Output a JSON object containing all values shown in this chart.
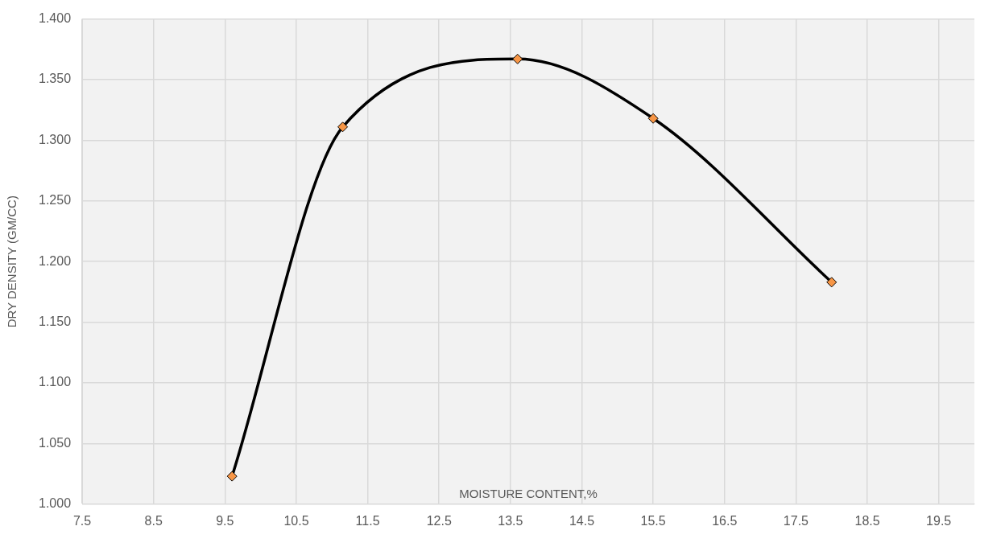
{
  "chart_data": {
    "type": "line",
    "xlabel": "MOISTURE CONTENT,%",
    "ylabel": "DRY DENSITY (GM/CC)",
    "x": [
      9.6,
      11.15,
      13.6,
      15.5,
      18.0
    ],
    "series": [
      {
        "color": "#000000",
        "values": [
          1.023,
          1.311,
          1.367,
          1.318,
          1.183
        ]
      }
    ],
    "marker": "diamond",
    "xlim": [
      7.5,
      20
    ],
    "xticks": [
      7.5,
      8.5,
      9.5,
      10.5,
      11.5,
      12.5,
      13.5,
      14.5,
      15.5,
      16.5,
      17.5,
      18.5,
      19.5
    ],
    "ylim": [
      1.0,
      1.4
    ],
    "yticks": [
      {
        "value": 1.0,
        "label": "1.000"
      },
      {
        "value": 1.05,
        "label": "1.050"
      },
      {
        "value": 1.1,
        "label": "1.100"
      },
      {
        "value": 1.15,
        "label": "1.150"
      },
      {
        "value": 1.2,
        "label": "1.200"
      },
      {
        "value": 1.25,
        "label": "1.250"
      },
      {
        "value": 1.3,
        "label": "1.300"
      },
      {
        "value": 1.35,
        "label": "1.350"
      },
      {
        "value": 1.4,
        "label": "1.400"
      }
    ],
    "grid": true,
    "legend": false
  }
}
